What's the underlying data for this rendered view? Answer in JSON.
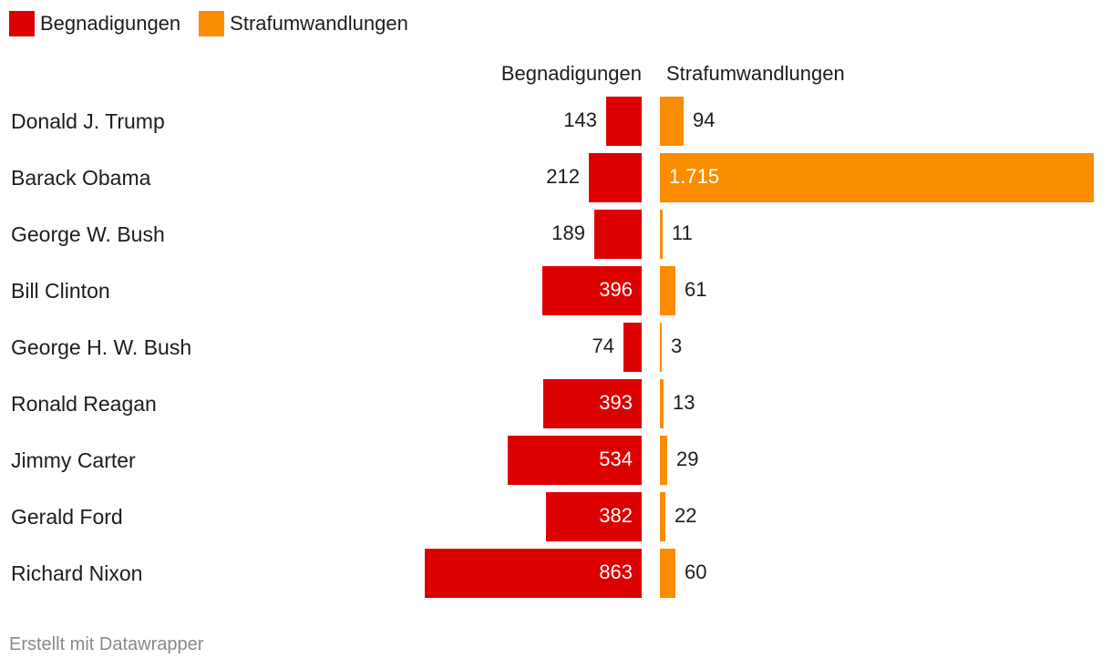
{
  "legend": [
    {
      "label": "Begnadigungen",
      "color": "#dd0000"
    },
    {
      "label": "Strafumwandlungen",
      "color": "#fa8c00"
    }
  ],
  "headers": {
    "left": "Begnadigungen",
    "right": "Strafumwandlungen"
  },
  "chart_data": {
    "type": "bar",
    "categories": [
      "Donald J. Trump",
      "Barack Obama",
      "George W. Bush",
      "Bill Clinton",
      "George H. W. Bush",
      "Ronald Reagan",
      "Jimmy Carter",
      "Gerald Ford",
      "Richard Nixon"
    ],
    "series": [
      {
        "name": "Begnadigungen",
        "values": [
          143,
          212,
          189,
          396,
          74,
          393,
          534,
          382,
          863
        ],
        "labels": [
          "143",
          "212",
          "189",
          "396",
          "74",
          "393",
          "534",
          "382",
          "863"
        ],
        "color": "#dd0000"
      },
      {
        "name": "Strafumwandlungen",
        "values": [
          94,
          1715,
          11,
          61,
          3,
          13,
          29,
          22,
          60
        ],
        "labels": [
          "94",
          "1.715",
          "11",
          "61",
          "3",
          "13",
          "29",
          "22",
          "60"
        ],
        "color": "#fa8c00"
      }
    ]
  },
  "footer": "Erstellt mit Datawrapper"
}
